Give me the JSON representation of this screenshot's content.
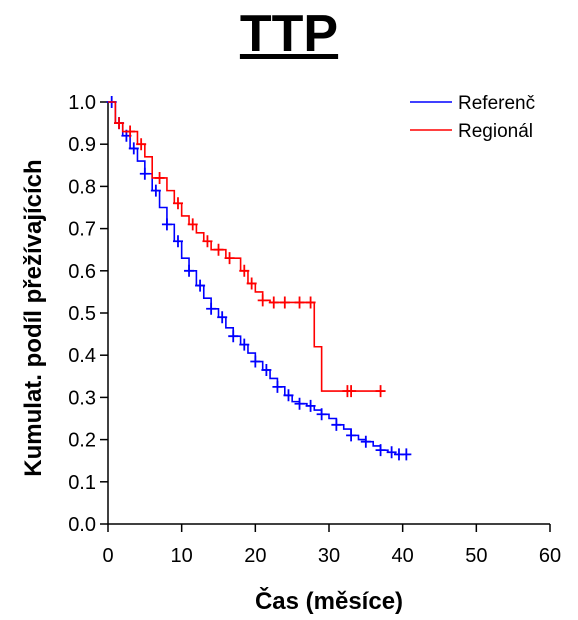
{
  "chart_data": {
    "type": "line",
    "title": "TTP",
    "xlabel": "Čas (měsíce)",
    "ylabel": "Kumulat. podíl přežívajících",
    "xlim": [
      0,
      60
    ],
    "ylim": [
      0.0,
      1.0
    ],
    "x_ticks": [
      "0",
      "10",
      "20",
      "30",
      "40",
      "50",
      "60"
    ],
    "y_ticks": [
      "0.0",
      "0.1",
      "0.2",
      "0.3",
      "0.4",
      "0.5",
      "0.6",
      "0.7",
      "0.8",
      "0.9",
      "1.0"
    ],
    "grid": false,
    "legend_position": "top-right",
    "series": [
      {
        "name": "Referenč",
        "color": "#0000ff",
        "step": true,
        "x": [
          0,
          1,
          2,
          3,
          4,
          5,
          6,
          7,
          8,
          9,
          10,
          11,
          12,
          13,
          14,
          15,
          16,
          17,
          18,
          19,
          20,
          21,
          22,
          23,
          24,
          25,
          26,
          27,
          28,
          29,
          30,
          31,
          32,
          33,
          34,
          35,
          36,
          37,
          38,
          39,
          40,
          41
        ],
        "y": [
          1.0,
          0.95,
          0.92,
          0.89,
          0.86,
          0.83,
          0.79,
          0.75,
          0.71,
          0.67,
          0.63,
          0.6,
          0.565,
          0.535,
          0.51,
          0.49,
          0.465,
          0.445,
          0.425,
          0.405,
          0.385,
          0.365,
          0.345,
          0.325,
          0.305,
          0.29,
          0.285,
          0.28,
          0.27,
          0.26,
          0.25,
          0.235,
          0.225,
          0.21,
          0.2,
          0.195,
          0.185,
          0.175,
          0.17,
          0.165,
          0.165,
          0.165
        ],
        "censored_x": [
          0.5,
          1.5,
          2.5,
          3.5,
          5,
          6.5,
          8,
          9.5,
          11,
          12.5,
          14,
          15.5,
          17,
          18.5,
          20,
          21.5,
          23,
          24.5,
          26,
          27.5,
          29,
          31,
          33,
          35,
          37,
          38.5,
          39.5,
          40.5
        ]
      },
      {
        "name": "Regionál",
        "color": "#ff0000",
        "step": true,
        "x": [
          0,
          1,
          2,
          4,
          5,
          6,
          8,
          9,
          10,
          11,
          12,
          13,
          14,
          16,
          18,
          19,
          20,
          21,
          22,
          28,
          29,
          37
        ],
        "y": [
          1.0,
          0.95,
          0.93,
          0.9,
          0.87,
          0.82,
          0.79,
          0.76,
          0.73,
          0.71,
          0.69,
          0.67,
          0.65,
          0.63,
          0.6,
          0.57,
          0.55,
          0.53,
          0.525,
          0.42,
          0.315,
          0.315
        ],
        "censored_x": [
          1.5,
          3,
          4.5,
          7,
          9.5,
          11.5,
          13.5,
          15,
          16.5,
          18.5,
          19.5,
          21,
          22.5,
          24,
          26,
          27.5,
          32.5,
          33,
          37
        ]
      }
    ]
  }
}
